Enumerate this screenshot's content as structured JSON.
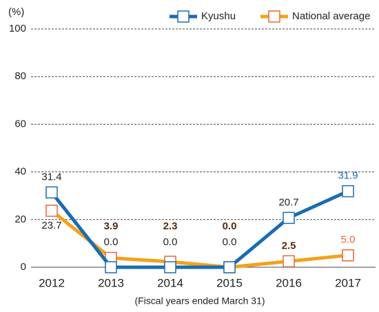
{
  "chart_data": {
    "type": "line",
    "y_unit_label": "(%)",
    "x_label": "(Fiscal years ended March 31)",
    "categories": [
      "2012",
      "2013",
      "2014",
      "2015",
      "2016",
      "2017"
    ],
    "series": [
      {
        "name": "Kyushu",
        "color": "#1a6cb3",
        "values": [
          31.4,
          0,
          0,
          0,
          20.7,
          31.9
        ],
        "value_labels": [
          "31.4",
          "0.0",
          "0.0",
          "0.0",
          "20.7",
          "31.9"
        ]
      },
      {
        "name": "National average",
        "color": "#f2a31b",
        "marker_color": "#e8653a",
        "values": [
          23.7,
          3.9,
          2.3,
          0,
          2.5,
          5.0
        ],
        "value_labels": [
          "23.7",
          "3.9",
          "2.3",
          "0.0",
          "2.5",
          "5.0"
        ]
      }
    ],
    "ylim": [
      0,
      100
    ],
    "yticks": [
      0,
      20,
      40,
      60,
      80,
      100
    ],
    "grid": true,
    "legend": "top-right"
  }
}
